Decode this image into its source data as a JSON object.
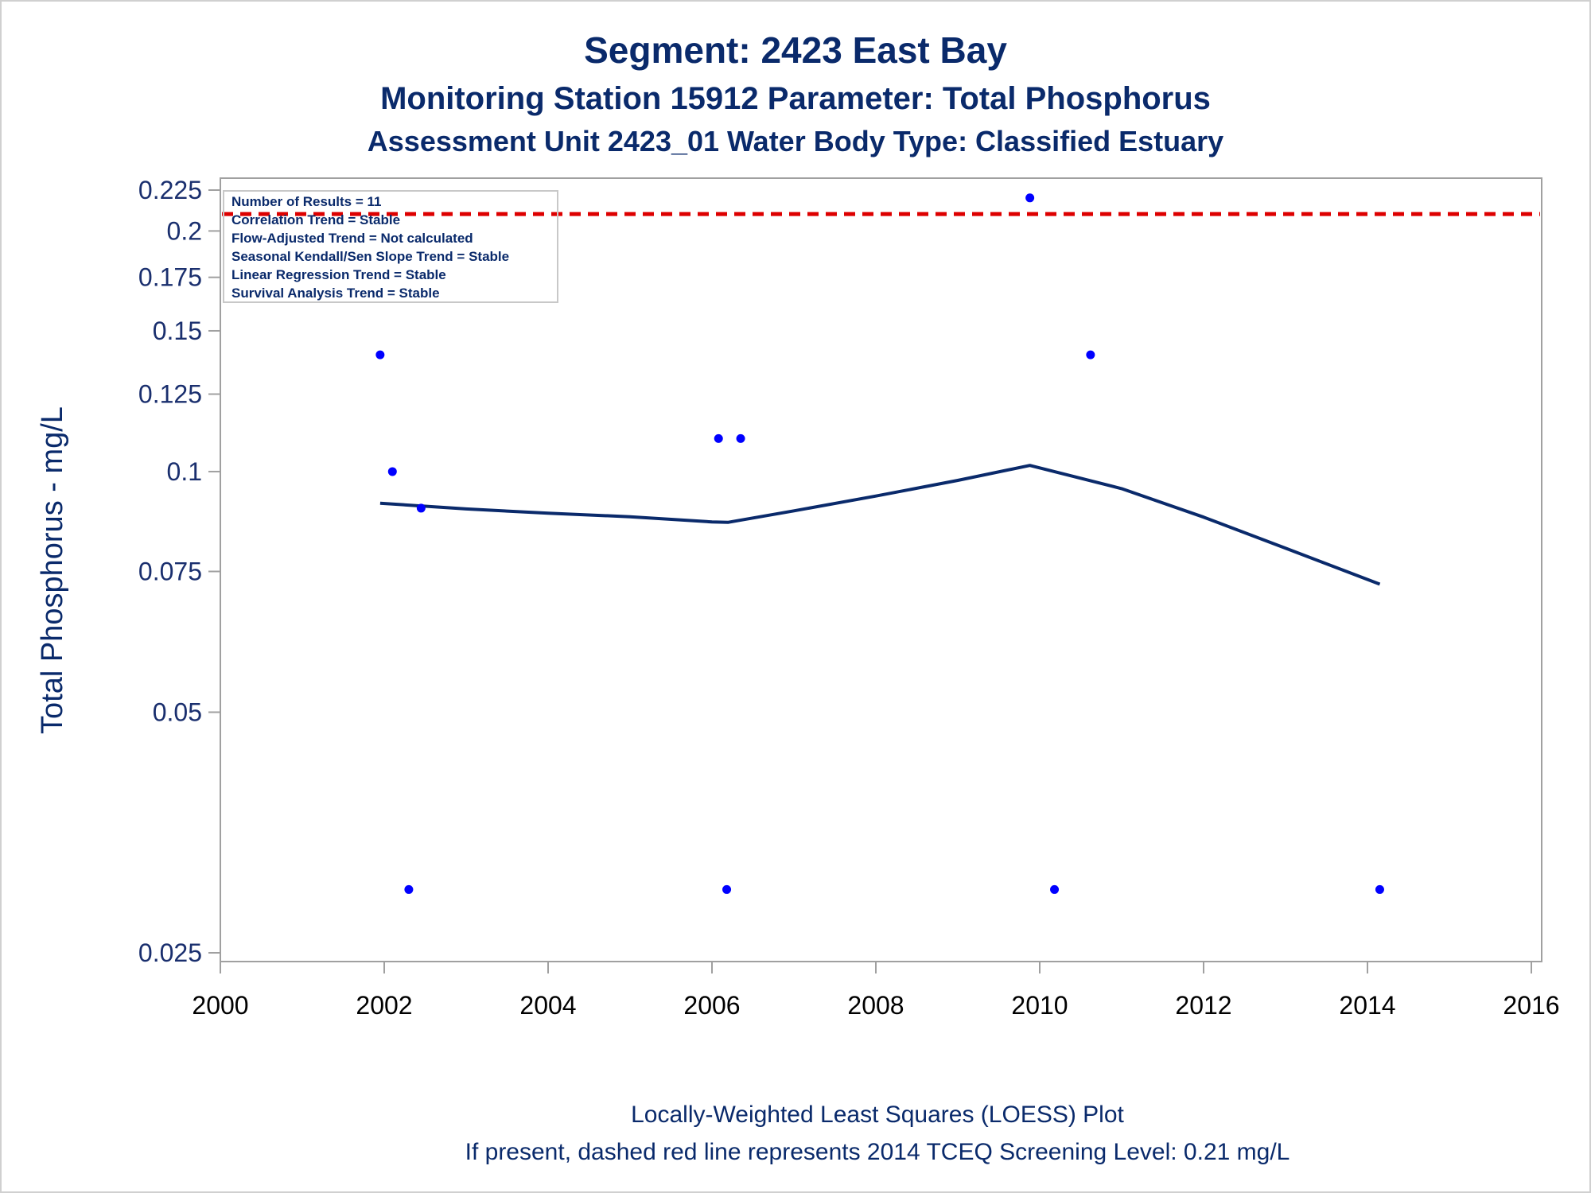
{
  "chart_data": {
    "type": "scatter",
    "title": "Segment: 2423  East Bay",
    "subtitle": "Monitoring Station 15912 Parameter: Total Phosphorus",
    "subtitle2": "Assessment Unit 2423_01   Water Body Type: Classified Estuary",
    "xlabel": "",
    "ylabel": "Total Phosphorus - mg/L",
    "y_scale": "log",
    "xlim": [
      2000,
      2016
    ],
    "ylim": [
      0.025,
      0.23
    ],
    "x_ticks": [
      2000,
      2002,
      2004,
      2006,
      2008,
      2010,
      2012,
      2014,
      2016
    ],
    "y_ticks": [
      0.225,
      0.2,
      0.175,
      0.15,
      0.125,
      0.1,
      0.075,
      0.05,
      0.025
    ],
    "x_tick_labels": [
      "2000",
      "2002",
      "2004",
      "2006",
      "2008",
      "2010",
      "2012",
      "2014",
      "2016"
    ],
    "y_tick_labels": [
      "0.225",
      "0.2",
      "0.175",
      "0.15",
      "0.125",
      "0.1",
      "0.075",
      "0.05",
      "0.025"
    ],
    "points": [
      {
        "x": 2001.95,
        "y": 0.14
      },
      {
        "x": 2002.1,
        "y": 0.1
      },
      {
        "x": 2002.3,
        "y": 0.03
      },
      {
        "x": 2002.45,
        "y": 0.09
      },
      {
        "x": 2006.08,
        "y": 0.11
      },
      {
        "x": 2006.18,
        "y": 0.03
      },
      {
        "x": 2006.35,
        "y": 0.11
      },
      {
        "x": 2009.88,
        "y": 0.22
      },
      {
        "x": 2010.18,
        "y": 0.03
      },
      {
        "x": 2010.62,
        "y": 0.14
      },
      {
        "x": 2014.15,
        "y": 0.03
      }
    ],
    "loess_curve": [
      {
        "x": 2001.95,
        "y": 0.0913
      },
      {
        "x": 2003.0,
        "y": 0.0898
      },
      {
        "x": 2004.0,
        "y": 0.0887
      },
      {
        "x": 2005.0,
        "y": 0.0878
      },
      {
        "x": 2006.0,
        "y": 0.0865
      },
      {
        "x": 2006.2,
        "y": 0.0864
      },
      {
        "x": 2007.0,
        "y": 0.0893
      },
      {
        "x": 2008.0,
        "y": 0.0932
      },
      {
        "x": 2009.0,
        "y": 0.0975
      },
      {
        "x": 2009.88,
        "y": 0.1018
      },
      {
        "x": 2011.0,
        "y": 0.0952
      },
      {
        "x": 2012.0,
        "y": 0.0877
      },
      {
        "x": 2013.0,
        "y": 0.0802
      },
      {
        "x": 2014.15,
        "y": 0.0723
      }
    ],
    "screening_level": 0.21,
    "inset_position": "top-left",
    "inset_lines": [
      "Number of Results = 11",
      "Correlation Trend = Stable",
      "Flow-Adjusted Trend = Not calculated",
      "Seasonal Kendall/Sen Slope Trend = Stable",
      "Linear Regression Trend = Stable",
      "Survival Analysis Trend = Stable"
    ],
    "footnote": "Locally-Weighted Least Squares (LOESS) Plot",
    "footnote2": "If present, dashed red line represents 2014 TCEQ Screening Level: 0.21 mg/L",
    "colors": {
      "points": "#0000ff",
      "curve": "#0a2a6b",
      "screening_line": "#dd0000",
      "text": "#0a2a6b",
      "axis": "#a0a0a0"
    }
  }
}
